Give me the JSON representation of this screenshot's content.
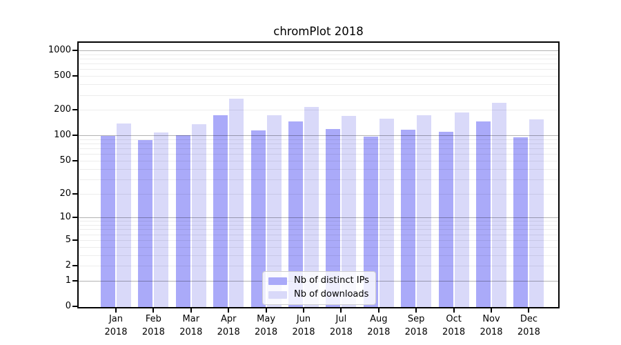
{
  "title": "chromPlot 2018",
  "chart_data": {
    "type": "bar",
    "title": "chromPlot 2018",
    "categories": [
      "Jan",
      "Feb",
      "Mar",
      "Apr",
      "May",
      "Jun",
      "Jul",
      "Aug",
      "Sep",
      "Oct",
      "Nov",
      "Dec"
    ],
    "category_year": "2018",
    "x_labels": [
      "Jan 2018",
      "Feb 2018",
      "Mar 2018",
      "Apr 2018",
      "May 2018",
      "Jun 2018",
      "Jul 2018",
      "Aug 2018",
      "Sep 2018",
      "Oct 2018",
      "Nov 2018",
      "Dec 2018"
    ],
    "series": [
      {
        "name": "Nb of distinct IPs",
        "color": "#aaaaf9",
        "values": [
          98,
          88,
          101,
          174,
          115,
          146,
          120,
          97,
          117,
          110,
          146,
          95
        ]
      },
      {
        "name": "Nb of downloads",
        "color": "#d9d9f9",
        "values": [
          137,
          109,
          135,
          272,
          173,
          218,
          170,
          158,
          172,
          185,
          244,
          154
        ]
      }
    ],
    "y_axis": {
      "scale": "log1p",
      "tick_values": [
        0,
        1,
        2,
        5,
        10,
        20,
        50,
        100,
        200,
        500,
        1000
      ],
      "major_gridlines": [
        1,
        10,
        100,
        1000
      ],
      "range_max": 1250
    },
    "legend_position": "bottom-center",
    "grid": true
  }
}
